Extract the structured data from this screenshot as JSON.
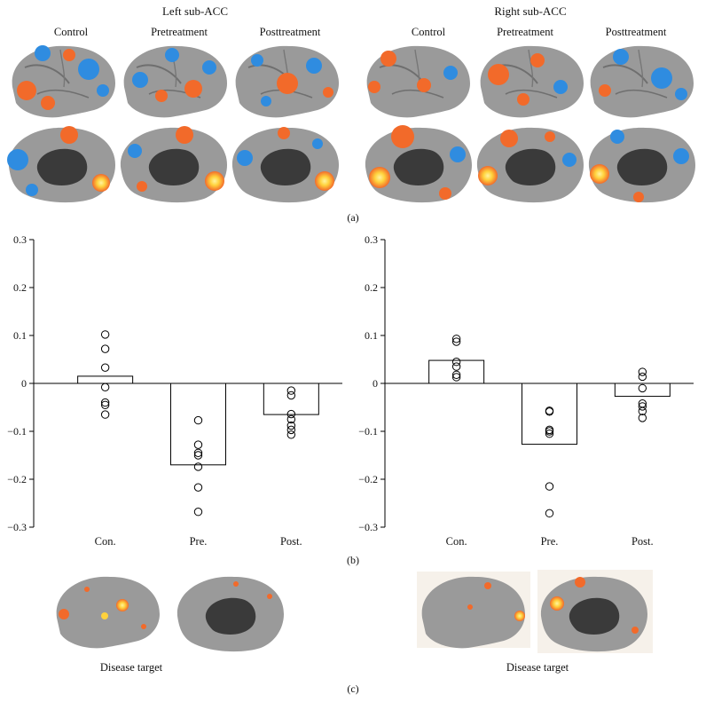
{
  "panel_a": {
    "groups": [
      {
        "title": "Left sub-ACC",
        "columns": [
          "Control",
          "Pretreatment",
          "Posttreatment"
        ]
      },
      {
        "title": "Right sub-ACC",
        "columns": [
          "Control",
          "Pretreatment",
          "Posttreatment"
        ]
      }
    ],
    "label": "(a)"
  },
  "panel_b_label": "(b)",
  "panel_c": {
    "captions": [
      "Disease target",
      "Disease target"
    ],
    "label": "(c)"
  },
  "colors": {
    "brain_gray": "#9a9a9a",
    "positive": "#f26a2a",
    "positive_peak": "#ffd23c",
    "negative": "#2f8ce0",
    "medial_wall": "#3a3a3a",
    "bar_fill": "#ffffff",
    "axis": "#000000"
  },
  "chart_data": [
    {
      "type": "bar",
      "categories": [
        "Con.",
        "Pre.",
        "Post."
      ],
      "values": [
        0.015,
        -0.17,
        -0.065
      ],
      "ylim": [
        -0.3,
        0.3
      ],
      "yticks": [
        "0.3",
        "0.2",
        "0.1",
        "0",
        "−0.1",
        "−0.2",
        "−0.3"
      ],
      "ytick_values": [
        0.3,
        0.2,
        0.1,
        0,
        -0.1,
        -0.2,
        -0.3
      ],
      "points": [
        [
          0.102,
          0.072,
          0.033,
          -0.008,
          -0.04,
          -0.045,
          -0.065
        ],
        [
          -0.077,
          -0.128,
          -0.145,
          -0.15,
          -0.174,
          -0.217,
          -0.268
        ],
        [
          -0.015,
          -0.025,
          -0.064,
          -0.075,
          -0.088,
          -0.097,
          -0.107
        ]
      ]
    },
    {
      "type": "bar",
      "categories": [
        "Con.",
        "Pre.",
        "Post."
      ],
      "values": [
        0.048,
        -0.127,
        -0.027
      ],
      "ylim": [
        -0.3,
        0.3
      ],
      "yticks": [
        "0.3",
        "0.2",
        "0.1",
        "0",
        "−0.1",
        "−0.2",
        "−0.3"
      ],
      "ytick_values": [
        0.3,
        0.2,
        0.1,
        0,
        -0.1,
        -0.2,
        -0.3
      ],
      "points": [
        [
          0.093,
          0.087,
          0.045,
          0.035,
          0.018,
          0.013
        ],
        [
          -0.057,
          -0.059,
          -0.097,
          -0.1,
          -0.105,
          -0.215,
          -0.271
        ],
        [
          0.024,
          0.014,
          -0.01,
          -0.042,
          -0.048,
          -0.058,
          -0.072
        ]
      ]
    }
  ]
}
